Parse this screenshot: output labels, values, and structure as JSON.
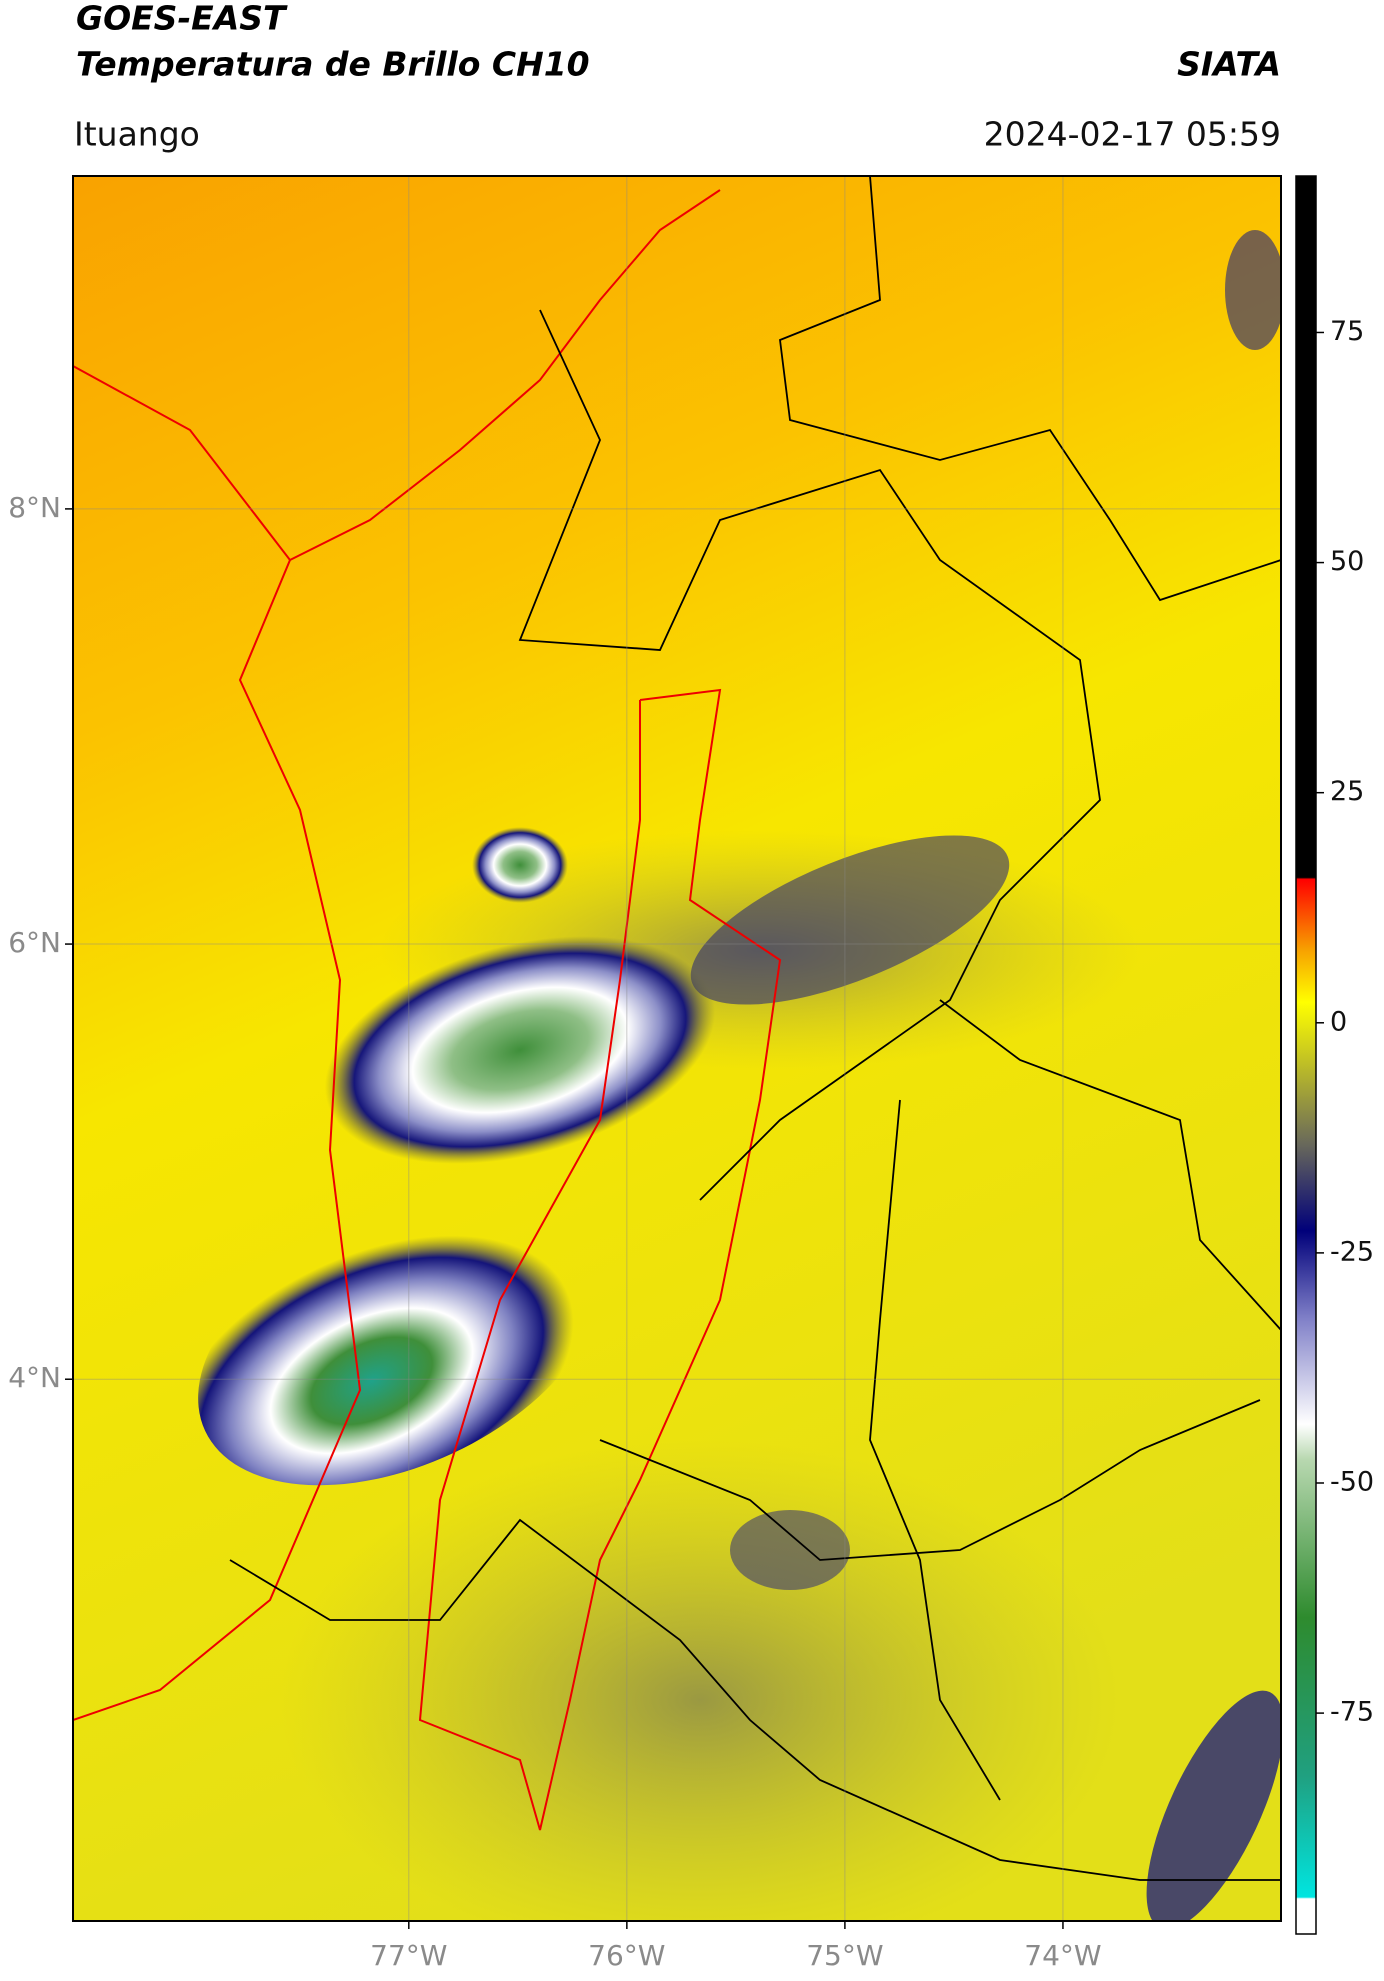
{
  "header": {
    "title_line1": "GOES-EAST",
    "title_line2": "Temperatura de Brillo CH10",
    "source": "SIATA",
    "location": "Ituango",
    "datetime": "2024-02-17 05:59"
  },
  "map": {
    "xlim": [
      -78.54,
      -73.0
    ],
    "ylim": [
      1.51,
      9.53
    ],
    "xticks": [
      {
        "value": -77,
        "label": "77°W"
      },
      {
        "value": -76,
        "label": "76°W"
      },
      {
        "value": -75,
        "label": "75°W"
      },
      {
        "value": -74,
        "label": "74°W"
      }
    ],
    "yticks": [
      {
        "value": 8,
        "label": "8°N"
      },
      {
        "value": 6,
        "label": "6°N"
      },
      {
        "value": 4,
        "label": "4°N"
      }
    ],
    "grid": true
  },
  "colorbar": {
    "lim": [
      -99,
      92
    ],
    "ticks": [
      75,
      50,
      25,
      0,
      -25,
      -50,
      -75
    ]
  }
}
